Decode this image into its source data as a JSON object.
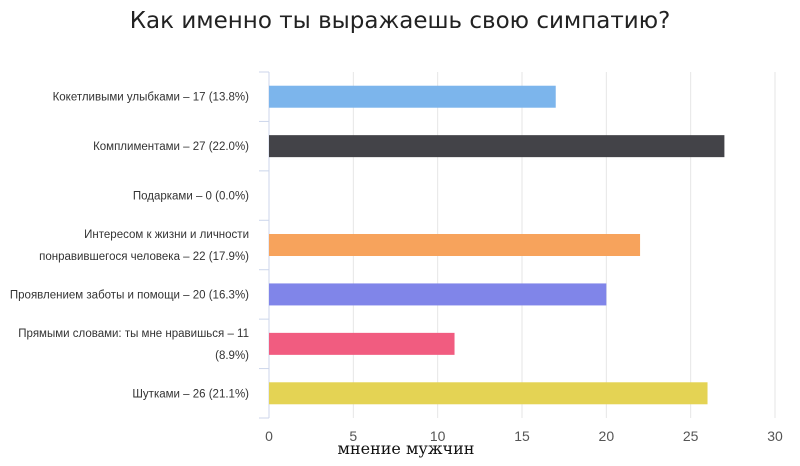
{
  "chart_data": {
    "type": "bar",
    "orientation": "horizontal",
    "title": "Как именно ты выражаешь свою симпатию?",
    "xlabel": "мнение мужчин",
    "xlim": [
      0,
      30
    ],
    "xticks": [
      0,
      5,
      10,
      15,
      20,
      25,
      30
    ],
    "grid": true,
    "categories": [
      [
        "Кокетливыми улыбками – 17 (13.8%)"
      ],
      [
        "Комплиментами – 27 (22.0%)"
      ],
      [
        "Подарками – 0 (0.0%)"
      ],
      [
        "Интересом к жизни и личности",
        "понравившегося человека – 22 (17.9%)"
      ],
      [
        "Проявлением заботы и помощи – 20 (16.3%)"
      ],
      [
        "Прямыми словами: ты мне нравишься – 11",
        "(8.9%)"
      ],
      [
        "Шутками – 26 (21.1%)"
      ]
    ],
    "values": [
      17,
      27,
      0,
      22,
      20,
      11,
      26
    ],
    "colors": [
      "#7cb5ec",
      "#434348",
      "#90ed7d",
      "#f7a35c",
      "#8085e9",
      "#f15c80",
      "#e4d354"
    ]
  }
}
